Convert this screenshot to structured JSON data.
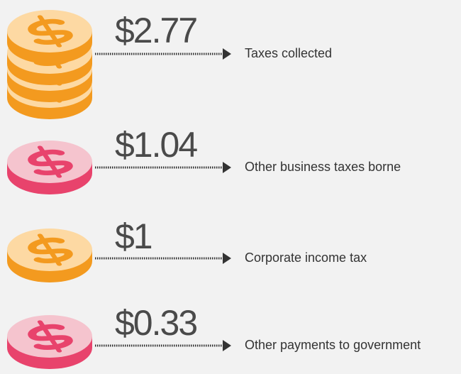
{
  "items": [
    {
      "amount": "$2.77",
      "label": "Taxes collected"
    },
    {
      "amount": "$1.04",
      "label": "Other business taxes borne"
    },
    {
      "amount": "$1",
      "label": "Corporate income tax"
    },
    {
      "amount": "$0.33",
      "label": "Other payments to government"
    }
  ]
}
